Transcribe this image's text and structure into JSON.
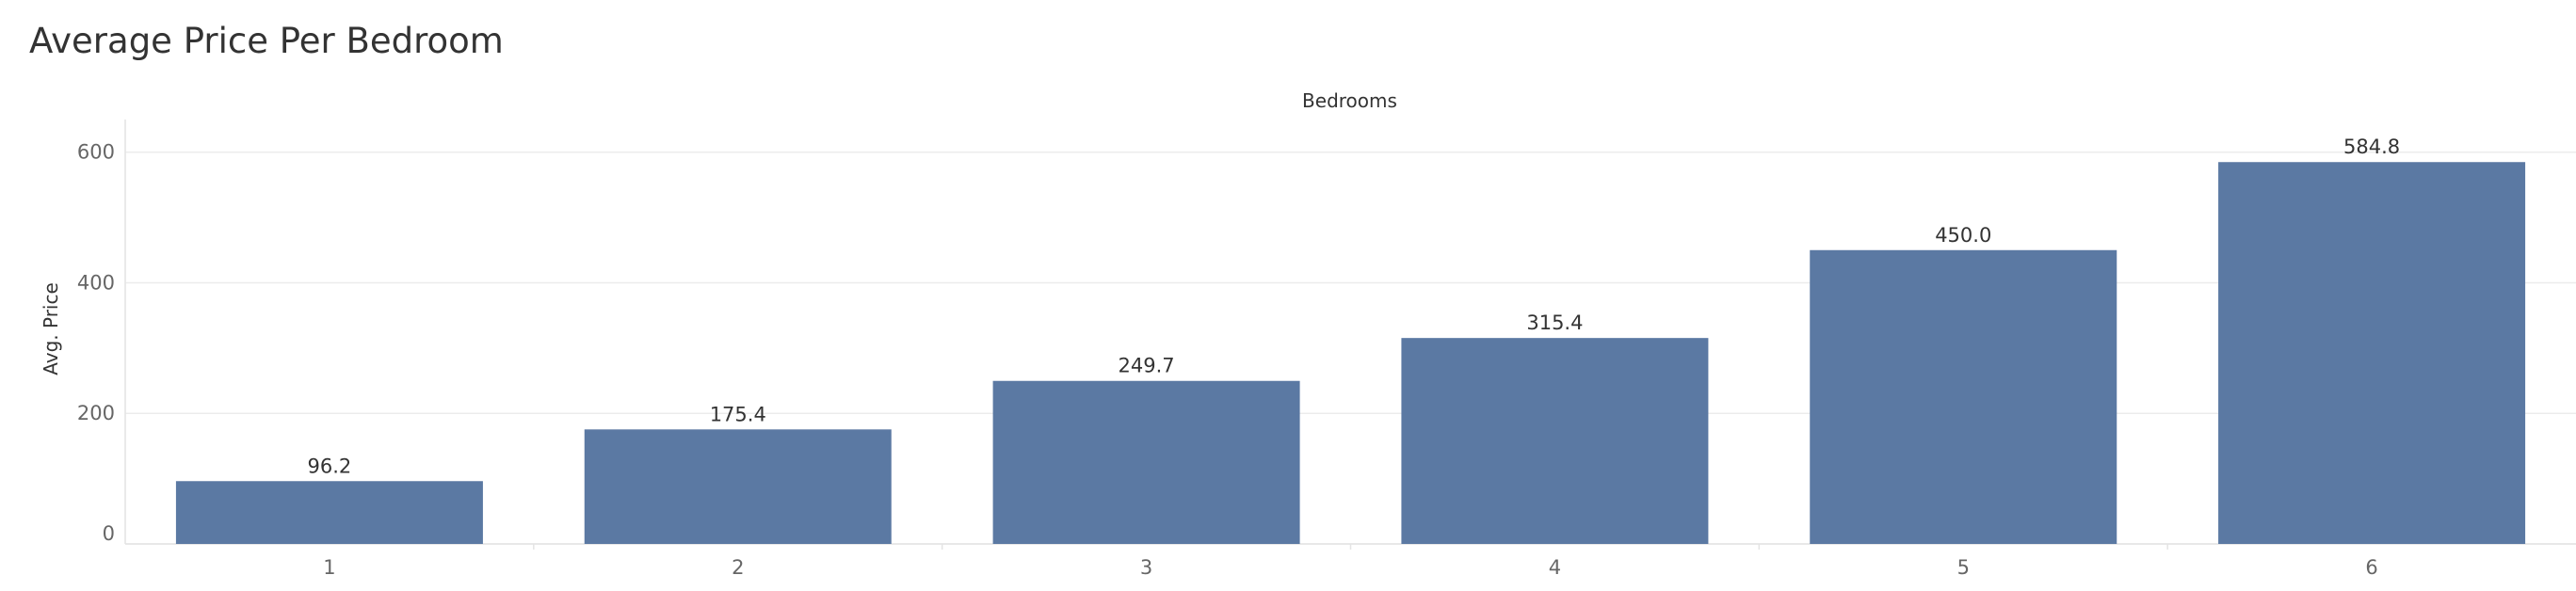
{
  "title": "Average Price Per Bedroom",
  "chart_data": {
    "type": "bar",
    "title": "Average Price Per Bedroom",
    "xlabel": "Bedrooms",
    "ylabel": "Avg. Price",
    "categories": [
      "1",
      "2",
      "3",
      "4",
      "5",
      "6"
    ],
    "values": [
      96.2,
      175.4,
      249.7,
      315.4,
      450.0,
      584.8
    ],
    "data_labels": [
      "96.2",
      "175.4",
      "249.7",
      "315.4",
      "450.0",
      "584.8"
    ],
    "ylim": [
      0,
      650
    ],
    "yticks": [
      0,
      200,
      400,
      600
    ],
    "grid": true,
    "legend": "none",
    "bar_color": "#5b79a3",
    "gridline_color": "#ececec"
  }
}
